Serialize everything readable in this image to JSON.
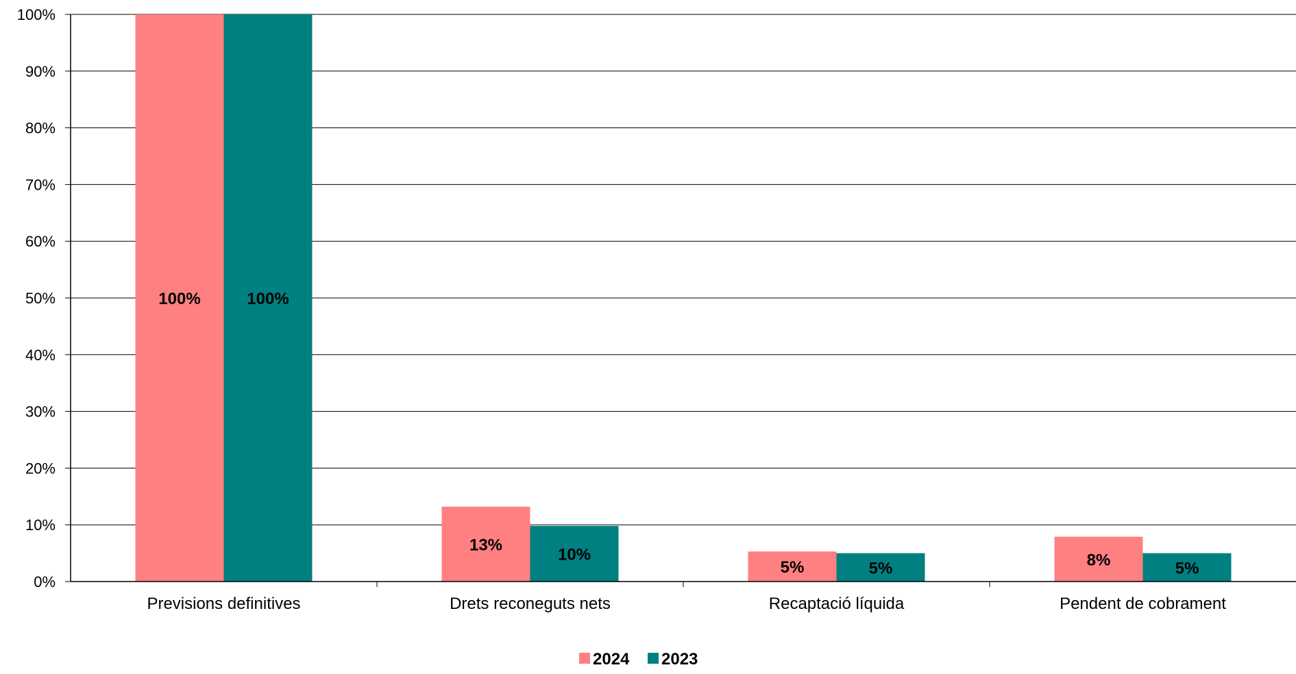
{
  "chart_data": {
    "type": "bar",
    "categories": [
      "Previsions definitives",
      "Drets reconeguts nets",
      "Recaptació líquida",
      "Pendent de cobrament"
    ],
    "series": [
      {
        "name": "2024",
        "values": [
          100,
          13.2,
          5.3,
          7.9
        ],
        "labels": [
          "100%",
          "13%",
          "5%",
          "8%"
        ],
        "color": "#FF8080"
      },
      {
        "name": "2023",
        "values": [
          100,
          9.8,
          5.0,
          5.0
        ],
        "labels": [
          "100%",
          "10%",
          "5%",
          "5%"
        ],
        "color": "#008080"
      }
    ],
    "y_ticks": [
      "0%",
      "10%",
      "20%",
      "30%",
      "40%",
      "50%",
      "60%",
      "70%",
      "80%",
      "90%",
      "100%"
    ],
    "ylim": [
      0,
      100
    ],
    "grid": true,
    "legend_position": "bottom"
  }
}
